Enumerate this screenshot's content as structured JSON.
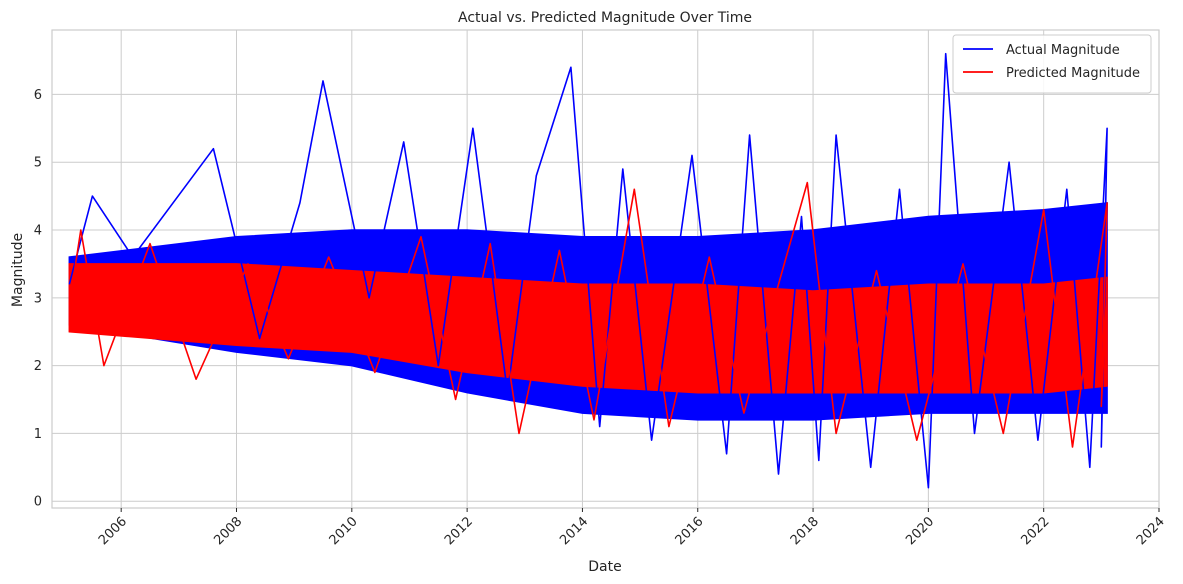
{
  "chart_data": {
    "type": "line",
    "title": "Actual vs. Predicted Magnitude Over Time",
    "xlabel": "Date",
    "ylabel": "Magnitude",
    "xlim": [
      2004.8,
      2024.0
    ],
    "ylim": [
      -0.1,
      6.95
    ],
    "x_ticks": [
      2006,
      2008,
      2010,
      2012,
      2014,
      2016,
      2018,
      2020,
      2022,
      2024
    ],
    "y_ticks": [
      0,
      1,
      2,
      3,
      4,
      5,
      6
    ],
    "grid": true,
    "legend_position": "top-right",
    "series": [
      {
        "name": "Actual Magnitude",
        "color": "#0000ff",
        "points": [
          [
            2005.1,
            3.2
          ],
          [
            2005.5,
            4.5
          ],
          [
            2006.2,
            3.6
          ],
          [
            2007.6,
            5.2
          ],
          [
            2008.4,
            2.4
          ],
          [
            2009.1,
            4.4
          ],
          [
            2009.5,
            6.2
          ],
          [
            2010.3,
            3.0
          ],
          [
            2010.9,
            5.3
          ],
          [
            2011.5,
            2.0
          ],
          [
            2012.1,
            5.5
          ],
          [
            2012.7,
            1.6
          ],
          [
            2013.2,
            4.8
          ],
          [
            2013.8,
            6.4
          ],
          [
            2014.3,
            1.1
          ],
          [
            2014.7,
            4.9
          ],
          [
            2015.2,
            0.9
          ],
          [
            2015.9,
            5.1
          ],
          [
            2016.5,
            0.7
          ],
          [
            2016.9,
            5.4
          ],
          [
            2017.4,
            0.4
          ],
          [
            2017.8,
            4.2
          ],
          [
            2018.1,
            0.6
          ],
          [
            2018.4,
            5.4
          ],
          [
            2019.0,
            0.5
          ],
          [
            2019.5,
            4.6
          ],
          [
            2020.0,
            0.2
          ],
          [
            2020.3,
            6.6
          ],
          [
            2020.8,
            1.0
          ],
          [
            2021.4,
            5.0
          ],
          [
            2021.9,
            0.9
          ],
          [
            2022.4,
            4.6
          ],
          [
            2022.8,
            0.5
          ],
          [
            2023.1,
            5.5
          ],
          [
            2023.0,
            0.8
          ],
          [
            2023.1,
            4.4
          ]
        ]
      },
      {
        "name": "Predicted Magnitude",
        "color": "#ff0000",
        "points": [
          [
            2005.1,
            2.9
          ],
          [
            2005.3,
            4.0
          ],
          [
            2005.7,
            2.0
          ],
          [
            2006.5,
            3.8
          ],
          [
            2007.3,
            1.8
          ],
          [
            2008.2,
            3.5
          ],
          [
            2008.9,
            2.1
          ],
          [
            2009.6,
            3.6
          ],
          [
            2010.4,
            1.9
          ],
          [
            2011.2,
            3.9
          ],
          [
            2011.8,
            1.5
          ],
          [
            2012.4,
            3.8
          ],
          [
            2012.9,
            1.0
          ],
          [
            2013.6,
            3.7
          ],
          [
            2014.2,
            1.2
          ],
          [
            2014.9,
            4.6
          ],
          [
            2015.5,
            1.1
          ],
          [
            2016.2,
            3.6
          ],
          [
            2016.8,
            1.3
          ],
          [
            2017.4,
            3.2
          ],
          [
            2017.9,
            4.7
          ],
          [
            2018.4,
            1.0
          ],
          [
            2019.1,
            3.4
          ],
          [
            2019.8,
            0.9
          ],
          [
            2020.6,
            3.5
          ],
          [
            2021.3,
            1.0
          ],
          [
            2022.0,
            4.3
          ],
          [
            2022.5,
            0.8
          ],
          [
            2023.1,
            4.4
          ],
          [
            2023.0,
            1.4
          ],
          [
            2023.1,
            3.2
          ]
        ]
      }
    ]
  }
}
